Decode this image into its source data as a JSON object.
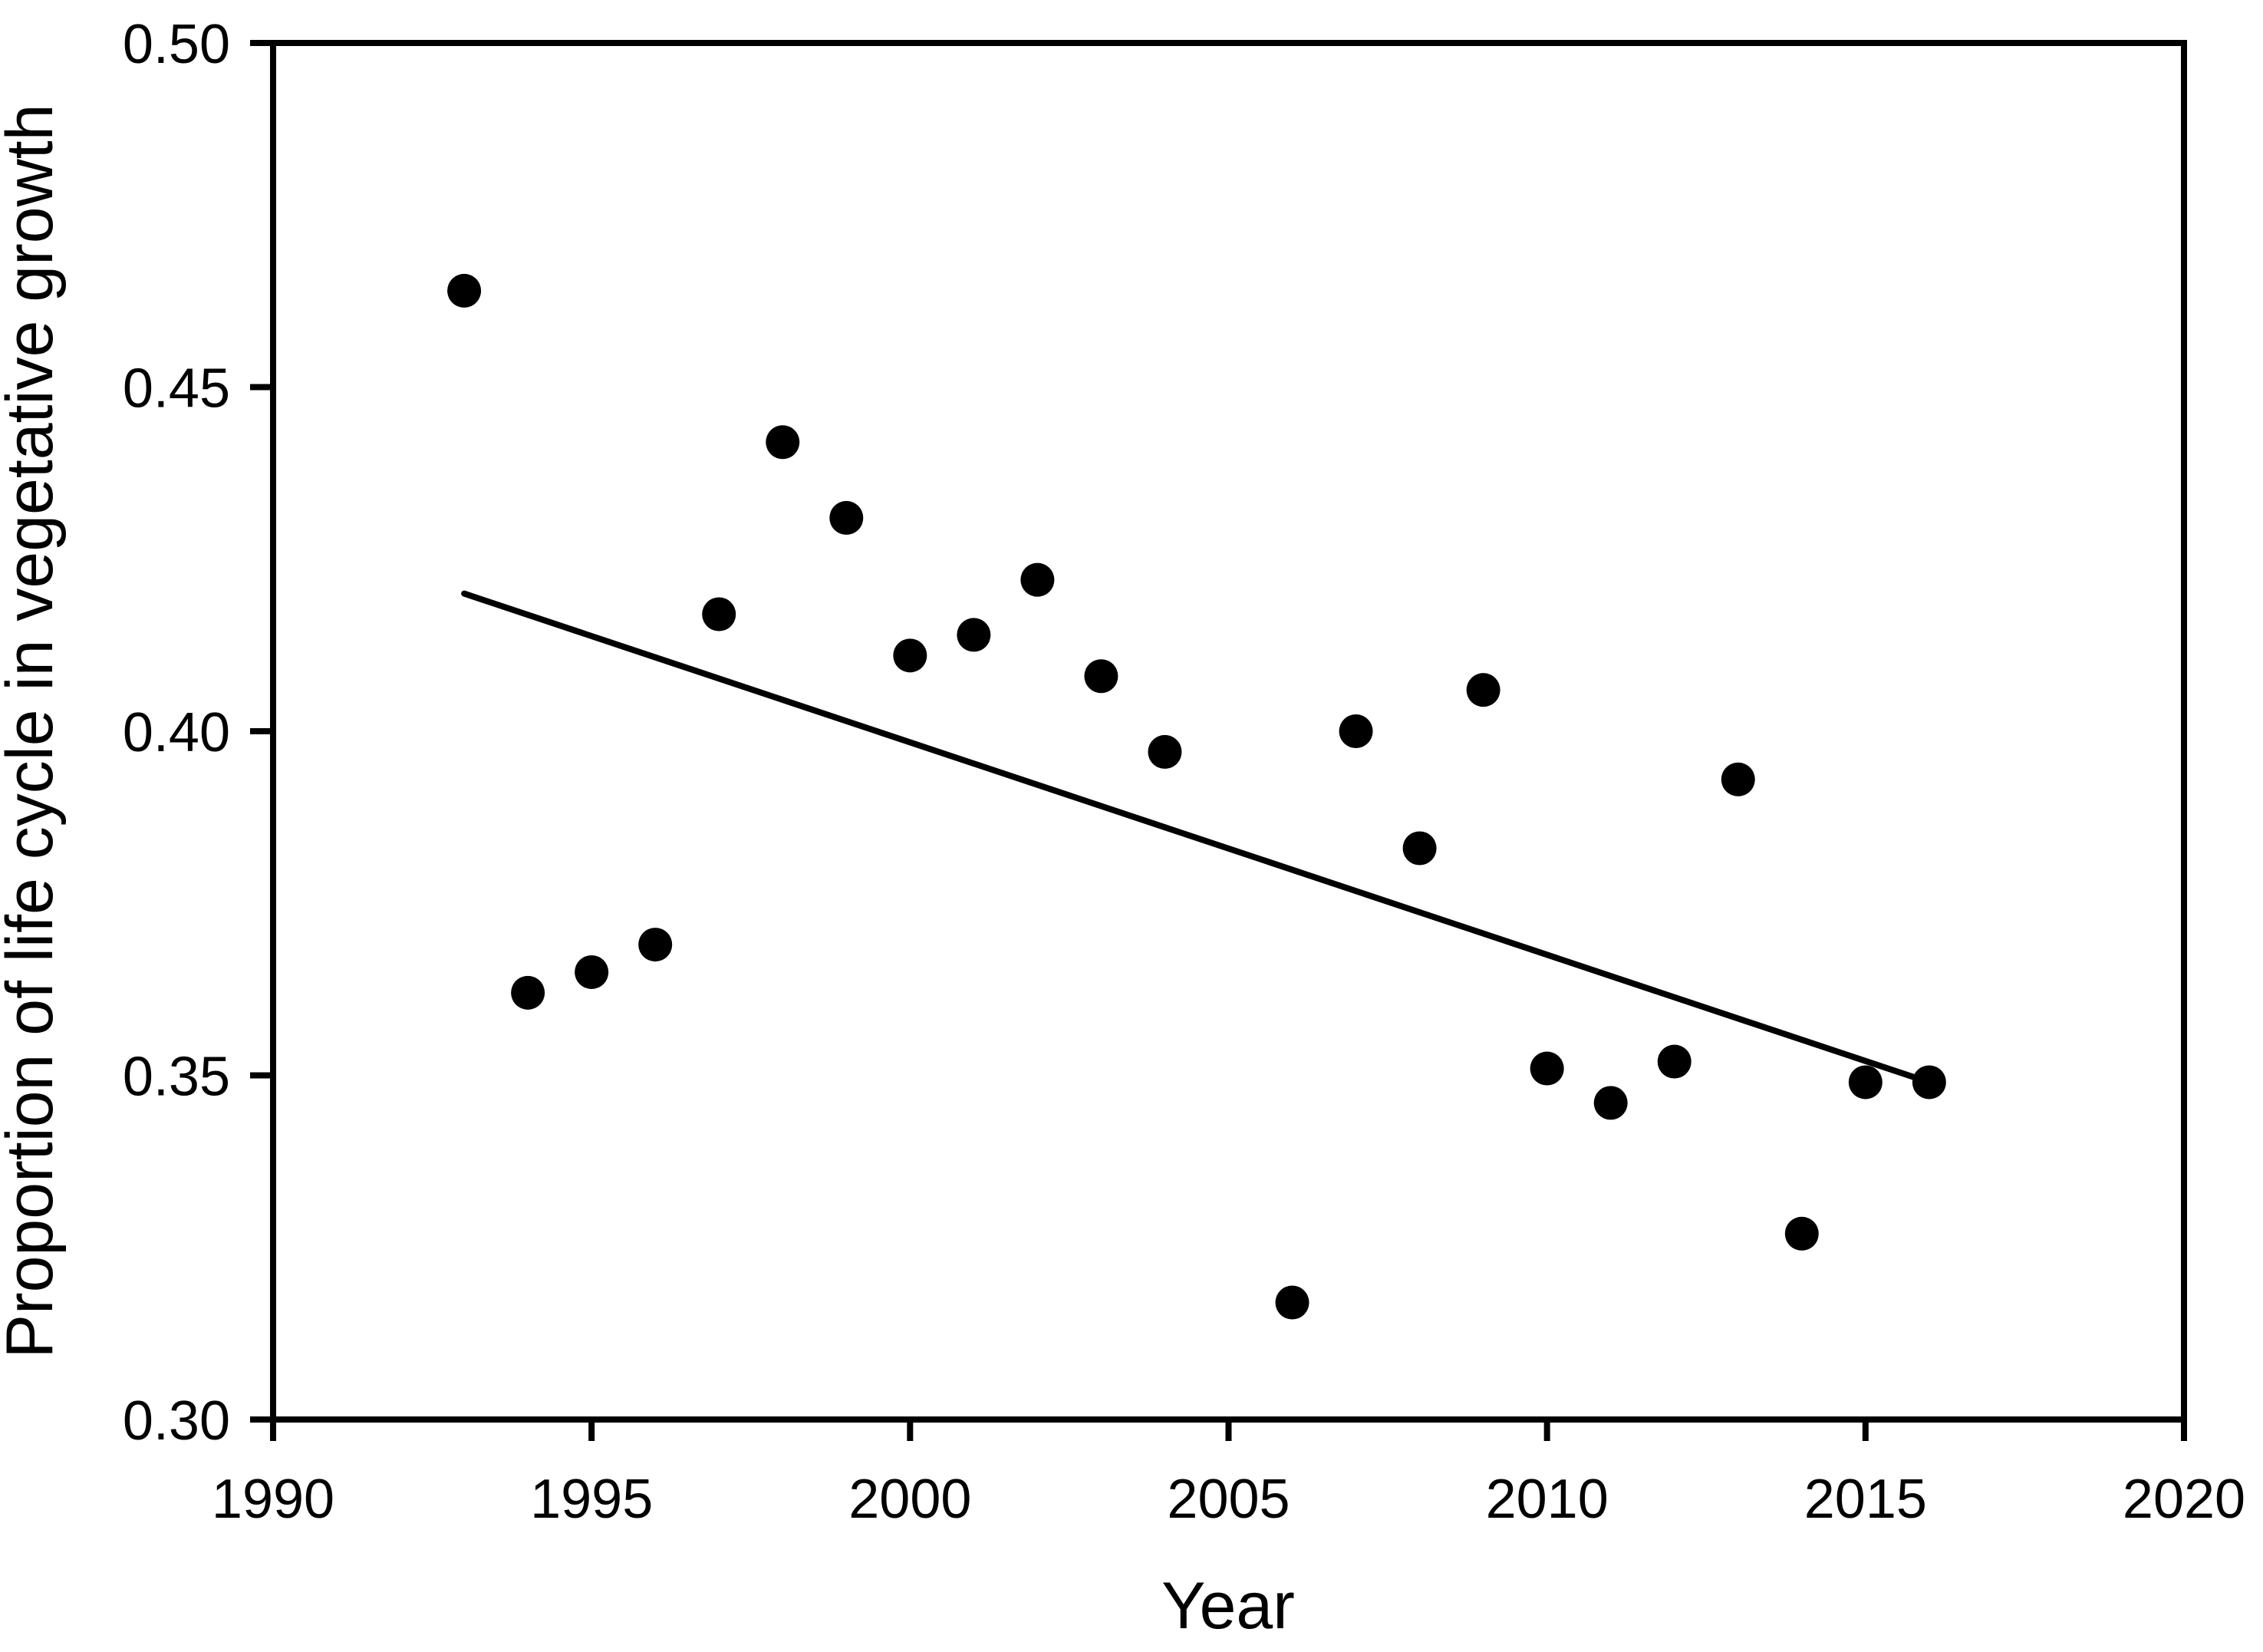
{
  "chart_data": {
    "type": "scatter",
    "title": "",
    "xlabel": "Year",
    "ylabel": "Proportion of life cycle in vegetative growth",
    "xlim": [
      1990,
      2020
    ],
    "ylim": [
      0.3,
      0.5
    ],
    "x_ticks": [
      1990,
      1995,
      2000,
      2005,
      2010,
      2015,
      2020
    ],
    "y_ticks": [
      0.3,
      0.35,
      0.4,
      0.45,
      0.5
    ],
    "y_tick_labels": [
      "0.30",
      "0.35",
      "0.40",
      "0.45",
      "0.50"
    ],
    "grid": false,
    "legend": null,
    "marker_color": "#000000",
    "frame_color": "#000000",
    "points": [
      {
        "x": 1993,
        "y": 0.464
      },
      {
        "x": 1994,
        "y": 0.362
      },
      {
        "x": 1995,
        "y": 0.365
      },
      {
        "x": 1996,
        "y": 0.369
      },
      {
        "x": 1997,
        "y": 0.417
      },
      {
        "x": 1998,
        "y": 0.442
      },
      {
        "x": 1999,
        "y": 0.431
      },
      {
        "x": 2000,
        "y": 0.411
      },
      {
        "x": 2001,
        "y": 0.414
      },
      {
        "x": 2002,
        "y": 0.422
      },
      {
        "x": 2003,
        "y": 0.408
      },
      {
        "x": 2004,
        "y": 0.397
      },
      {
        "x": 2006,
        "y": 0.317
      },
      {
        "x": 2007,
        "y": 0.4
      },
      {
        "x": 2008,
        "y": 0.383
      },
      {
        "x": 2009,
        "y": 0.406
      },
      {
        "x": 2010,
        "y": 0.351
      },
      {
        "x": 2011,
        "y": 0.346
      },
      {
        "x": 2012,
        "y": 0.352
      },
      {
        "x": 2013,
        "y": 0.393
      },
      {
        "x": 2014,
        "y": 0.327
      },
      {
        "x": 2015,
        "y": 0.349
      },
      {
        "x": 2016,
        "y": 0.349
      }
    ],
    "trend_line": {
      "x1": 1993,
      "y1": 0.42,
      "x2": 2016,
      "y2": 0.349
    }
  }
}
